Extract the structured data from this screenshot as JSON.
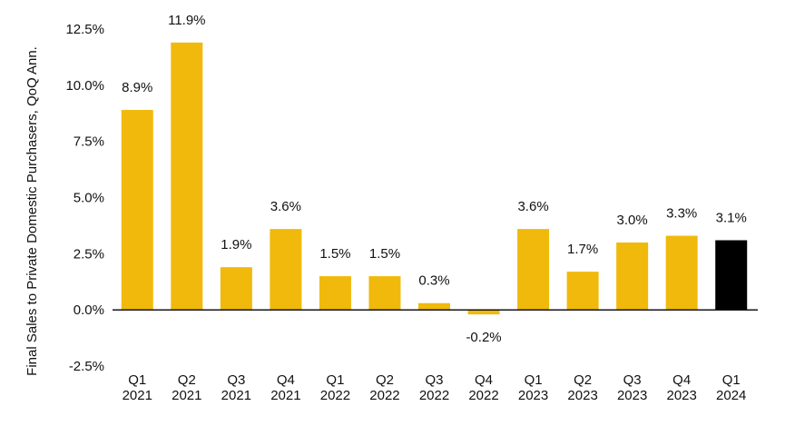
{
  "chart_data": {
    "type": "bar",
    "title": "",
    "xlabel": "",
    "ylabel": "Final Sales to Private Domestic Purchasers, QoQ Ann.",
    "ylim": [
      -2.5,
      12.5
    ],
    "yticks": [
      -2.5,
      0,
      2.5,
      5,
      7.5,
      10,
      12.5
    ],
    "ytick_labels": [
      "-2.5%",
      "0.0%",
      "2.5%",
      "5.0%",
      "7.5%",
      "10.0%",
      "12.5%"
    ],
    "grid": false,
    "categories": [
      [
        "Q1",
        "2021"
      ],
      [
        "Q2",
        "2021"
      ],
      [
        "Q3",
        "2021"
      ],
      [
        "Q4",
        "2021"
      ],
      [
        "Q1",
        "2022"
      ],
      [
        "Q2",
        "2022"
      ],
      [
        "Q3",
        "2022"
      ],
      [
        "Q4",
        "2022"
      ],
      [
        "Q1",
        "2023"
      ],
      [
        "Q2",
        "2023"
      ],
      [
        "Q3",
        "2023"
      ],
      [
        "Q4",
        "2023"
      ],
      [
        "Q1",
        "2024"
      ]
    ],
    "values": [
      8.9,
      11.9,
      1.9,
      3.6,
      1.5,
      1.5,
      0.3,
      -0.2,
      3.6,
      1.7,
      3.0,
      3.3,
      3.1
    ],
    "data_labels": [
      "8.9%",
      "11.9%",
      "1.9%",
      "3.6%",
      "1.5%",
      "1.5%",
      "0.3%",
      "-0.2%",
      "3.6%",
      "1.7%",
      "3.0%",
      "3.3%",
      "3.1%"
    ],
    "colors": {
      "default": "#F0B90B",
      "highlight": "#000000",
      "axis": "#000000"
    },
    "highlight_index": 12
  }
}
